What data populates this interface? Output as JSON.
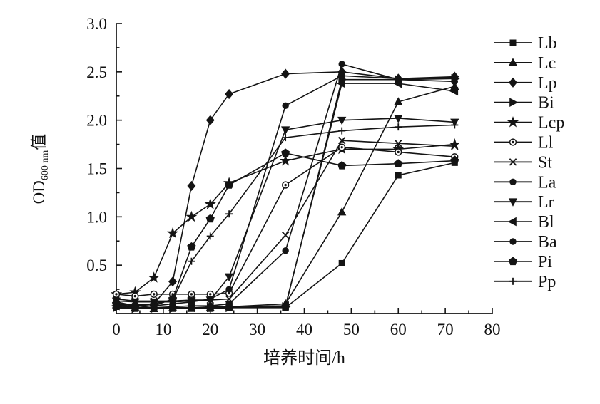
{
  "figure": {
    "background": "#ffffff",
    "line_color": "#141414",
    "axis_color": "#141414"
  },
  "chart_data": {
    "type": "line",
    "title": "",
    "xlabel": "培养时间/h",
    "ylabel_prefix": "OD",
    "ylabel_subscript": "600 nm",
    "ylabel_suffix": "值",
    "xlim": [
      0,
      80
    ],
    "ylim": [
      0,
      3.0
    ],
    "x_major_ticks": [
      0,
      10,
      20,
      30,
      40,
      50,
      60,
      70,
      80
    ],
    "x_tick_labels": [
      "0",
      "10",
      "20",
      "30",
      "40",
      "50",
      "60",
      "70",
      "80"
    ],
    "x_minor_step": 5,
    "y_major_ticks": [
      0.5,
      1.0,
      1.5,
      2.0,
      2.5,
      3.0
    ],
    "y_tick_labels": [
      "0.5",
      "1.0",
      "1.5",
      "2.0",
      "2.5",
      "3.0"
    ],
    "y_minor_step": 0.25,
    "grid": false,
    "legend_position": "right",
    "x": [
      0,
      4,
      8,
      12,
      16,
      20,
      24,
      36,
      48,
      60,
      72
    ],
    "series": [
      {
        "name": "Lb",
        "marker": "square",
        "values": [
          0.07,
          0.05,
          0.05,
          0.05,
          0.05,
          0.05,
          0.06,
          0.06,
          0.52,
          1.43,
          1.56
        ]
      },
      {
        "name": "Lc",
        "marker": "triangle-up",
        "values": [
          0.09,
          0.06,
          0.05,
          0.06,
          0.06,
          0.06,
          0.07,
          0.1,
          1.05,
          2.19,
          2.35
        ]
      },
      {
        "name": "Lp",
        "marker": "diamond",
        "values": [
          0.1,
          0.08,
          0.1,
          0.33,
          1.32,
          2.0,
          2.27,
          2.48,
          2.5,
          2.43,
          2.45
        ]
      },
      {
        "name": "Bi",
        "marker": "triangle-right",
        "values": [
          0.06,
          0.05,
          0.05,
          0.05,
          0.06,
          0.06,
          0.06,
          0.07,
          2.42,
          2.42,
          2.43
        ]
      },
      {
        "name": "Lcp",
        "marker": "star",
        "values": [
          0.2,
          0.22,
          0.37,
          0.83,
          1.0,
          1.13,
          1.35,
          1.58,
          1.7,
          1.7,
          1.75
        ]
      },
      {
        "name": "Ll",
        "marker": "circle-dot",
        "values": [
          0.2,
          0.18,
          0.2,
          0.2,
          0.2,
          0.2,
          0.21,
          1.33,
          1.72,
          1.67,
          1.62
        ]
      },
      {
        "name": "St",
        "marker": "x",
        "values": [
          0.15,
          0.13,
          0.13,
          0.13,
          0.14,
          0.14,
          0.15,
          0.81,
          1.79,
          1.76,
          1.73
        ]
      },
      {
        "name": "La",
        "marker": "circle",
        "values": [
          0.1,
          0.06,
          0.06,
          0.07,
          0.08,
          0.08,
          0.1,
          0.65,
          2.58,
          2.42,
          2.4
        ]
      },
      {
        "name": "Lr",
        "marker": "triangle-down",
        "values": [
          0.13,
          0.12,
          0.12,
          0.12,
          0.13,
          0.14,
          0.38,
          1.9,
          2.0,
          2.02,
          1.98
        ]
      },
      {
        "name": "Bl",
        "marker": "triangle-left",
        "values": [
          0.08,
          0.06,
          0.06,
          0.06,
          0.06,
          0.07,
          0.07,
          0.08,
          2.38,
          2.38,
          2.3
        ]
      },
      {
        "name": "Ba",
        "marker": "circle",
        "values": [
          0.12,
          0.08,
          0.08,
          0.1,
          0.12,
          0.15,
          0.25,
          2.15,
          2.46,
          2.43,
          2.44
        ]
      },
      {
        "name": "Pi",
        "marker": "pentagon",
        "values": [
          0.1,
          0.06,
          0.08,
          0.15,
          0.69,
          0.98,
          1.33,
          1.66,
          1.53,
          1.55,
          1.58
        ]
      },
      {
        "name": "Pp",
        "marker": "plus",
        "values": [
          0.1,
          0.09,
          0.1,
          0.14,
          0.54,
          0.8,
          1.03,
          1.82,
          1.89,
          1.93,
          1.95
        ]
      }
    ]
  }
}
